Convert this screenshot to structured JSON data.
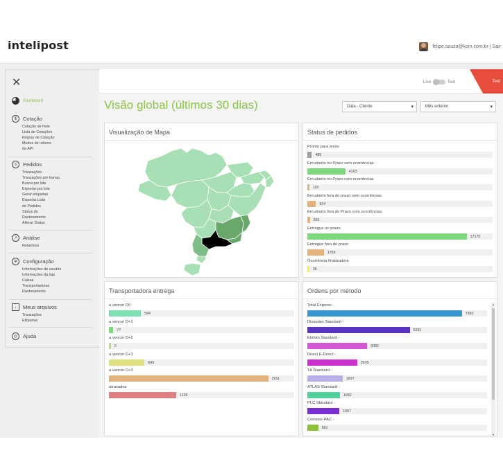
{
  "header": {
    "logo": "intelipost",
    "user": "felipe.souza@koin.com.br | Sair"
  },
  "sidebar": {
    "sections": [
      {
        "label": "Dashboard",
        "icon": "pie-chart-icon",
        "active": true,
        "items": []
      },
      {
        "label": "Cotação",
        "icon": "quote-icon",
        "items": [
          "Cotação de frete",
          "Lista de Cotações",
          "Regras de Cotação",
          "Modos de retorno",
          "da API"
        ]
      },
      {
        "label": "Pedidos",
        "icon": "orders-icon",
        "items": [
          "Transações",
          "Transações por transp.",
          "Busca por lote",
          "Exportar por lote",
          "Gerar etiquetas",
          "Exportar Lista",
          "de Pedidos",
          "Status do",
          "Rastreamento",
          "Alterar Status"
        ]
      },
      {
        "label": "Análise",
        "icon": "analytics-icon",
        "items": [
          "Relatórios"
        ]
      },
      {
        "label": "Configuração",
        "icon": "gear-icon",
        "items": [
          "Informações de usuário",
          "Informações da loja",
          "Caixas",
          "Transportadoras",
          "Rastreamento"
        ]
      },
      {
        "label": "Meus arquivos",
        "icon": "download-icon",
        "items": [
          "Transações",
          "Etiquetas"
        ]
      },
      {
        "label": "Ajuda",
        "icon": "help-icon",
        "items": []
      }
    ]
  },
  "topstrip": {
    "live": "Live",
    "test": "Test",
    "ribbon": "Test"
  },
  "page": {
    "title": "Visão global (últimos 30 dias)",
    "filter1": "Data - Cliente",
    "filter2": "Mês anterior"
  },
  "map_panel": {
    "title": "Visualização de Mapa"
  },
  "status_panel": {
    "title": "Status de pedidos",
    "max": 17170,
    "rows": [
      {
        "label": "Pronto para envio",
        "value": 486,
        "display": "486",
        "color": "#9e9e9e"
      },
      {
        "label": "Em aberto no Prazo sem ocorrências",
        "value": 4103,
        "display": "4103",
        "color": "#7ed97e"
      },
      {
        "label": "Em aberto no Prazo com ocorrências",
        "value": 118,
        "display": "118",
        "color": "#e3b27f"
      },
      {
        "label": "Em aberto fora do prazo sem ocorrências",
        "value": 924,
        "display": "924",
        "color": "#e3b27f"
      },
      {
        "label": "Em aberto fora do Prazo com ocorrências",
        "value": 266,
        "display": "266",
        "color": "#e3b27f"
      },
      {
        "label": "Entregue no prazo",
        "value": 17170,
        "display": "17170",
        "color": "#7ed97e"
      },
      {
        "label": "Entregue fora do prazo",
        "value": 1769,
        "display": "1769",
        "color": "#e3b27f"
      },
      {
        "label": "Ocorrência finalizadora",
        "value": 36,
        "display": "36",
        "color": "#f5f03c"
      }
    ]
  },
  "carrier_panel": {
    "title": "Transportadora entrega",
    "max": 2911,
    "rows": [
      {
        "label": "a vencer D0",
        "value": 584,
        "display": "584",
        "color": "#7fe0b3"
      },
      {
        "label": "a vencer D+1",
        "value": 77,
        "display": "77",
        "color": "#7fd97f"
      },
      {
        "label": "a vencer D+2",
        "value": 0,
        "display": "0",
        "color": "#b7e07f"
      },
      {
        "label": "a vencer D+3",
        "value": 649,
        "display": "649",
        "color": "#dde07f"
      },
      {
        "label": "a vencer D>3",
        "value": 2911,
        "display": "2911",
        "color": "#e3b27f"
      },
      {
        "label": "atrasados",
        "value": 1226,
        "display": "1226",
        "color": "#e07f7f"
      }
    ]
  },
  "method_panel": {
    "title": "Ordens por método",
    "max": 7982,
    "rows": [
      {
        "label": "Total Express -",
        "value": 7982,
        "display": "7982",
        "color": "#3a96cf"
      },
      {
        "label": "Dissudes Standard -",
        "value": 5291,
        "display": "5291",
        "color": "#5a35c4"
      },
      {
        "label": "Elohim Standard -",
        "value": 3083,
        "display": "3083",
        "color": "#d457d4"
      },
      {
        "label": "Direct E-Direct -",
        "value": 2570,
        "display": "2570",
        "color": "#cc33cc"
      },
      {
        "label": "TA Standard -",
        "value": 1827,
        "display": "1827",
        "color": "#b8aee8"
      },
      {
        "label": "ATLAS Standard -",
        "value": 1682,
        "display": "1682",
        "color": "#4ed19a"
      },
      {
        "label": "PLC Standard -",
        "value": 1657,
        "display": "1657",
        "color": "#7a2fd0"
      },
      {
        "label": "Correios PAC -",
        "value": 561,
        "display": "561",
        "color": "#8fc23a"
      }
    ]
  },
  "colors": {
    "accent": "#8bc34a",
    "ribbon": "#e74c3c",
    "map_light": "#a8dfb4",
    "map_mid": "#6aa76a",
    "map_dark": "#000000"
  }
}
